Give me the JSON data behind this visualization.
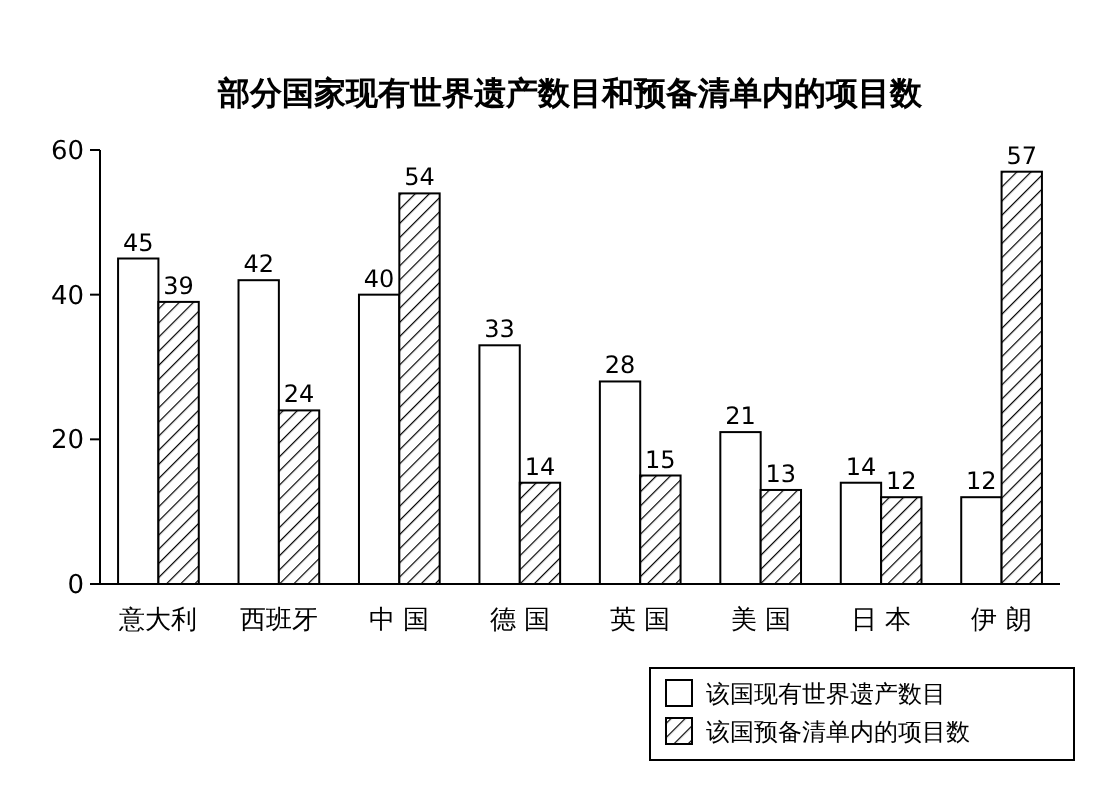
{
  "chart_data": {
    "type": "bar",
    "title": "部分国家现有世界遗产数目和预备清单内的项目数",
    "categories": [
      "意大利",
      "西班牙",
      "中 国",
      "德 国",
      "英 国",
      "美 国",
      "日 本",
      "伊 朗"
    ],
    "series": [
      {
        "name": "该国现有世界遗产数目",
        "color": "#ffffff",
        "values": [
          45,
          42,
          40,
          33,
          28,
          21,
          14,
          12
        ]
      },
      {
        "name": "该国预备清单内的项目数",
        "color": "#000000",
        "values": [
          39,
          24,
          54,
          14,
          15,
          13,
          12,
          57
        ]
      }
    ],
    "ylim": [
      0,
      60
    ],
    "yticks": [
      0,
      20,
      40,
      60
    ],
    "data_labels": true,
    "grid": false,
    "legend": "bottom right"
  }
}
